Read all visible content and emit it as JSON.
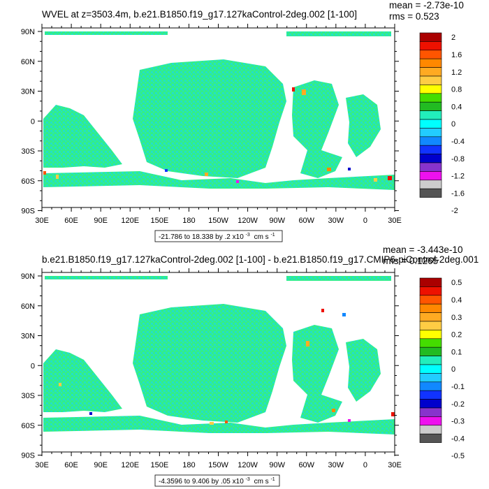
{
  "panels": [
    {
      "title": "WVEL at z=3503.4m, b.e21.B1850.f19_g17.127kaControl-2deg.002 [1-100]",
      "stats": [
        "mean = -2.73e-10",
        "rms = 0.523"
      ],
      "range_prefix": "-21.786 to 18.338 by .2 x10",
      "range_units": "cm s",
      "colorbar_labels": [
        "2",
        "1.6",
        "1.2",
        "0.8",
        "0.4",
        "0",
        "-0.4",
        "-0.8",
        "-1.2",
        "-1.6",
        "-2"
      ]
    },
    {
      "title": "b.e21.B1850.f19_g17.127kaControl-2deg.002 [1-100] - b.e21.B1850.f19_g17.CMIP6-piControl-2deg.001",
      "stats": [
        "mean = -3.443e-10",
        "rms = 0.1265"
      ],
      "range_prefix": "-4.3596 to 9.406 by .05 x10",
      "range_units": "cm s",
      "colorbar_labels": [
        "0.5",
        "0.4",
        "0.3",
        "0.2",
        "0.1",
        "0",
        "-0.1",
        "-0.2",
        "-0.3",
        "-0.4",
        "-0.5"
      ]
    }
  ],
  "superscript_exp": "-3",
  "superscript_unit": "-1",
  "lat_labels": [
    "90N",
    "60N",
    "30N",
    "0",
    "30S",
    "60S",
    "90S"
  ],
  "lon_labels": [
    "30E",
    "60E",
    "90E",
    "120E",
    "150E",
    "180",
    "150W",
    "120W",
    "90W",
    "60W",
    "30W",
    "0",
    "30E"
  ],
  "colors": {
    "ocean_main": "#33ee88",
    "ocean_alt": "#22dddd",
    "scale": [
      "#aa0000",
      "#ee1100",
      "#ff5500",
      "#ff8800",
      "#ffaa22",
      "#ffcc44",
      "#ffff00",
      "#44dd00",
      "#22bb22",
      "#22eebb",
      "#00ffff",
      "#22ccff",
      "#1188ff",
      "#1133ff",
      "#0000cc",
      "#8833cc",
      "#ee11ee",
      "#cccccc",
      "#555555"
    ]
  }
}
